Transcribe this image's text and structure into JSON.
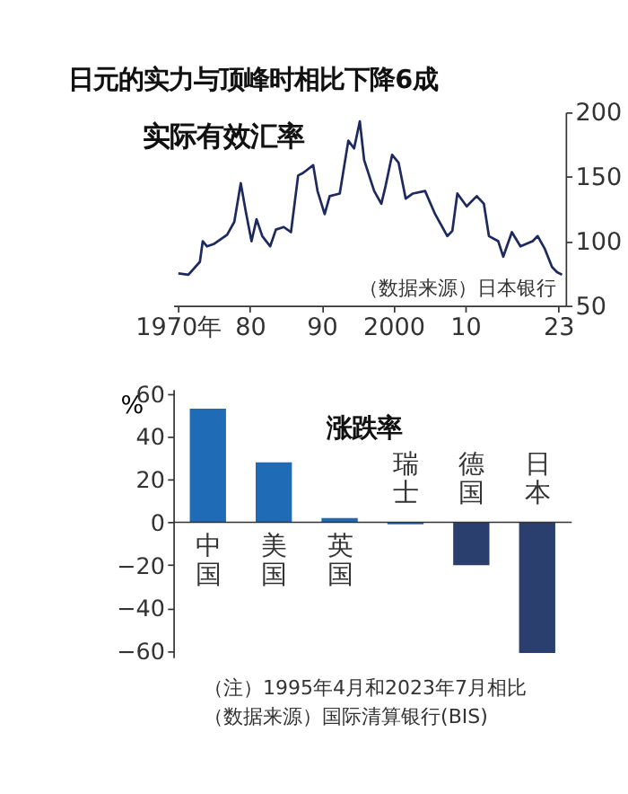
{
  "chart_data": [
    {
      "type": "line",
      "title": "日元的实力与顶峰时相比下降6成",
      "subtitle": "实际有效汇率",
      "annotations": [
        "（数据来源）日本银行"
      ],
      "x": [
        1970,
        1971.4,
        1973,
        1973.4,
        1974,
        1975,
        1976.8,
        1977.8,
        1978.7,
        1979.4,
        1980.2,
        1980.9,
        1981.7,
        1982.8,
        1983.6,
        1984.7,
        1985.7,
        1986.7,
        1987.4,
        1988.8,
        1989.4,
        1990.4,
        1991.1,
        1992.5,
        1993.7,
        1994.5,
        1995.3,
        1995.9,
        1997.3,
        1998.3,
        1998.9,
        1999.8,
        2000.7,
        2001.7,
        2002.7,
        2004.4,
        2005.8,
        2007.5,
        2008.2,
        2008.9,
        2010.2,
        2011.6,
        2012.6,
        2013.3,
        2014.6,
        2015.3,
        2016.5,
        2017.7,
        2019.4,
        2020.1,
        2021.1,
        2022.1,
        2022.8,
        2023.5
      ],
      "series": [
        {
          "color": "#1e2a5e",
          "values": [
            75,
            74,
            84,
            100,
            96,
            98,
            105,
            115,
            145,
            123,
            100,
            117,
            104,
            96,
            109,
            111,
            107,
            151,
            153,
            159,
            139,
            121,
            135,
            137,
            178,
            172,
            193,
            163,
            139,
            129,
            143,
            167,
            161,
            133,
            137,
            139,
            121,
            104,
            108,
            137,
            127,
            135,
            129,
            104,
            100,
            88,
            107,
            96,
            100,
            104,
            94,
            80,
            76,
            74
          ]
        }
      ],
      "xlim": [
        1969.3,
        2024
      ],
      "xticks": [
        {
          "value": 1970,
          "label": "1970年"
        },
        {
          "value": 1980,
          "label": "80"
        },
        {
          "value": 1990,
          "label": "90"
        },
        2000,
        {
          "value": 2010,
          "label": "10"
        },
        {
          "value": 2023,
          "label": "23"
        }
      ],
      "ylim": [
        50,
        200
      ],
      "yticks": [
        50,
        100,
        150,
        200
      ],
      "grid": false
    },
    {
      "type": "bar",
      "title": "涨跌率",
      "ylabel": "%",
      "annotations": [
        "（注）1995年4月和2023年7月相比",
        "（数据来源）国际清算银行(BIS)"
      ],
      "categories": [
        "中国",
        "美国",
        "英国",
        "瑞士",
        "德国",
        "日本"
      ],
      "values": [
        53,
        28,
        2,
        -1,
        -20,
        -61
      ],
      "colors": [
        "#1f6bb5",
        "#1f6bb5",
        "#1f6bb5",
        "#1f6bb5",
        "#2a3f6e",
        "#2a3f6e"
      ],
      "ylim": [
        -63,
        62
      ],
      "yticks": [
        -60,
        -40,
        -20,
        0,
        20,
        40,
        60
      ],
      "grid": false
    }
  ]
}
